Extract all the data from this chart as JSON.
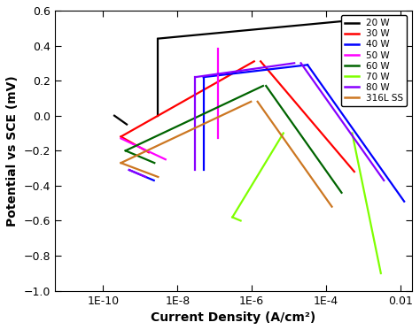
{
  "xlabel": "Current Density (A/cm²)",
  "ylabel": "Potential vs SCE (mV)",
  "ylim": [
    -1.0,
    0.6
  ],
  "yticks": [
    -1.0,
    -0.8,
    -0.6,
    -0.4,
    -0.2,
    0.0,
    0.2,
    0.4,
    0.6
  ],
  "xtick_labels": [
    "1E-10",
    "1E-8",
    "1E-6",
    "1E-4",
    "0.01"
  ],
  "legend_labels": [
    "20 W",
    "30 W",
    "40 W",
    "50 W",
    "60 W",
    "70 W",
    "80 W",
    "316L SS"
  ],
  "colors": {
    "20W": "#000000",
    "30W": "#ff0000",
    "40W": "#0000ff",
    "50W": "#ff00ff",
    "60W": "#006400",
    "70W": "#7fff00",
    "80W": "#8800ff",
    "316L": "#cc7722"
  },
  "linewidth": 1.6
}
